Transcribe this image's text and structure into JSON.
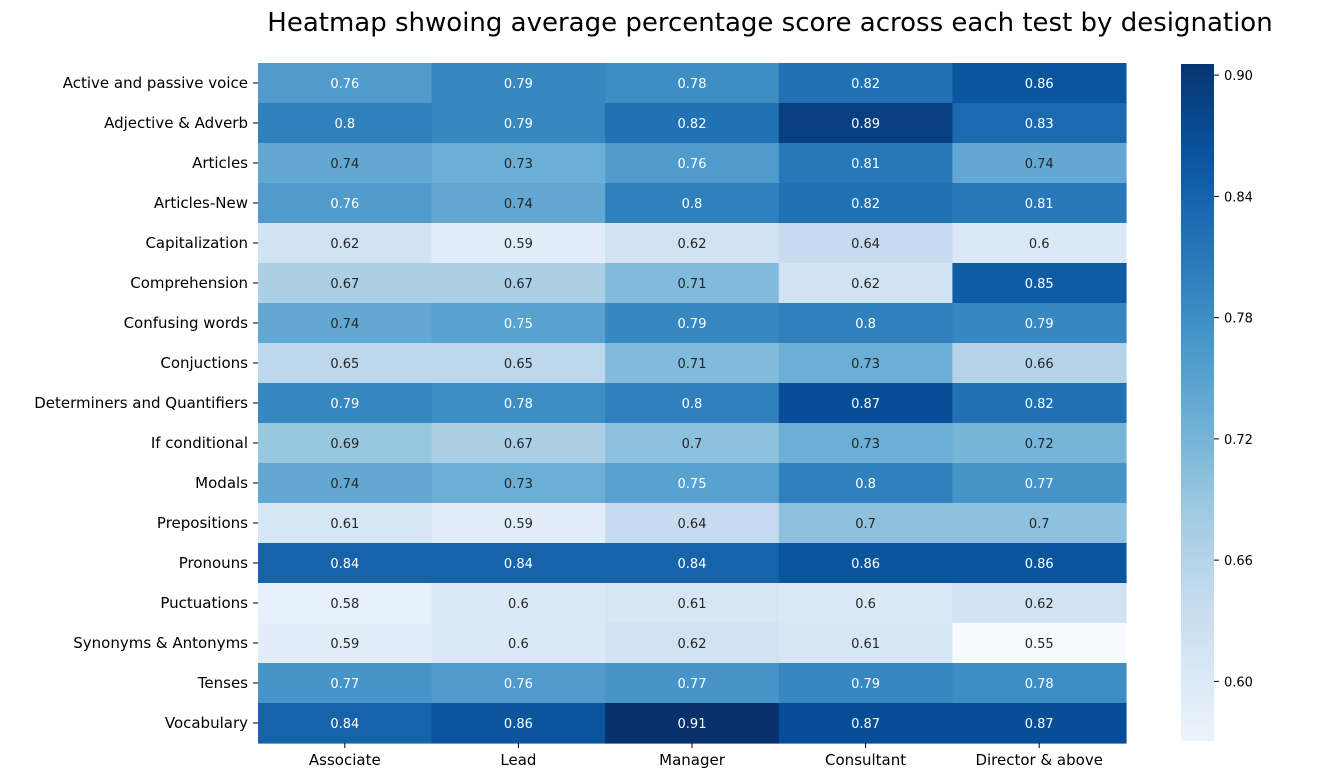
{
  "chart_data": {
    "type": "heatmap",
    "title": "Heatmap shwoing average percentage score across each test by designation",
    "xlabel": "",
    "ylabel": "",
    "colormap": "Blues",
    "color_range": [
      0.55,
      0.91
    ],
    "x_categories": [
      "Associate",
      "Lead",
      "Manager",
      "Consultant",
      "Director & above"
    ],
    "y_categories": [
      "Active and passive voice",
      "Adjective & Adverb",
      "Articles",
      "Articles-New",
      "Capitalization",
      "Comprehension",
      "Confusing words",
      "Conjuctions",
      "Determiners and Quantifiers",
      "If conditional",
      "Modals",
      "Prepositions",
      "Pronouns",
      "Puctuations",
      "Synonyms & Antonyms",
      "Tenses",
      "Vocabulary"
    ],
    "values": [
      [
        0.76,
        0.79,
        0.78,
        0.82,
        0.86
      ],
      [
        0.8,
        0.79,
        0.82,
        0.89,
        0.83
      ],
      [
        0.74,
        0.73,
        0.76,
        0.81,
        0.74
      ],
      [
        0.76,
        0.74,
        0.8,
        0.82,
        0.81
      ],
      [
        0.62,
        0.59,
        0.62,
        0.64,
        0.6
      ],
      [
        0.67,
        0.67,
        0.71,
        0.62,
        0.85
      ],
      [
        0.74,
        0.75,
        0.79,
        0.8,
        0.79
      ],
      [
        0.65,
        0.65,
        0.71,
        0.73,
        0.66
      ],
      [
        0.79,
        0.78,
        0.8,
        0.87,
        0.82
      ],
      [
        0.69,
        0.67,
        0.7,
        0.73,
        0.72
      ],
      [
        0.74,
        0.73,
        0.75,
        0.8,
        0.77
      ],
      [
        0.61,
        0.59,
        0.64,
        0.7,
        0.7
      ],
      [
        0.84,
        0.84,
        0.84,
        0.86,
        0.86
      ],
      [
        0.58,
        0.6,
        0.61,
        0.6,
        0.62
      ],
      [
        0.59,
        0.6,
        0.62,
        0.61,
        0.55
      ],
      [
        0.77,
        0.76,
        0.77,
        0.79,
        0.78
      ],
      [
        0.84,
        0.86,
        0.91,
        0.87,
        0.87
      ]
    ],
    "cell_labels": [
      [
        "0.76",
        "0.79",
        "0.78",
        "0.82",
        "0.86"
      ],
      [
        "0.8",
        "0.79",
        "0.82",
        "0.89",
        "0.83"
      ],
      [
        "0.74",
        "0.73",
        "0.76",
        "0.81",
        "0.74"
      ],
      [
        "0.76",
        "0.74",
        "0.8",
        "0.82",
        "0.81"
      ],
      [
        "0.62",
        "0.59",
        "0.62",
        "0.64",
        "0.6"
      ],
      [
        "0.67",
        "0.67",
        "0.71",
        "0.62",
        "0.85"
      ],
      [
        "0.74",
        "0.75",
        "0.79",
        "0.8",
        "0.79"
      ],
      [
        "0.65",
        "0.65",
        "0.71",
        "0.73",
        "0.66"
      ],
      [
        "0.79",
        "0.78",
        "0.8",
        "0.87",
        "0.82"
      ],
      [
        "0.69",
        "0.67",
        "0.7",
        "0.73",
        "0.72"
      ],
      [
        "0.74",
        "0.73",
        "0.75",
        "0.8",
        "0.77"
      ],
      [
        "0.61",
        "0.59",
        "0.64",
        "0.7",
        "0.7"
      ],
      [
        "0.84",
        "0.84",
        "0.84",
        "0.86",
        "0.86"
      ],
      [
        "0.58",
        "0.6",
        "0.61",
        "0.6",
        "0.62"
      ],
      [
        "0.59",
        "0.6",
        "0.62",
        "0.61",
        "0.55"
      ],
      [
        "0.77",
        "0.76",
        "0.77",
        "0.79",
        "0.78"
      ],
      [
        "0.84",
        "0.86",
        "0.91",
        "0.87",
        "0.87"
      ]
    ],
    "colorbar": {
      "ticks": [
        0.6,
        0.66,
        0.72,
        0.78,
        0.84,
        0.9
      ],
      "tick_labels": [
        "0.60",
        "0.66",
        "0.72",
        "0.78",
        "0.84",
        "0.90"
      ]
    },
    "legend": "colorbar-right",
    "grid": false
  }
}
